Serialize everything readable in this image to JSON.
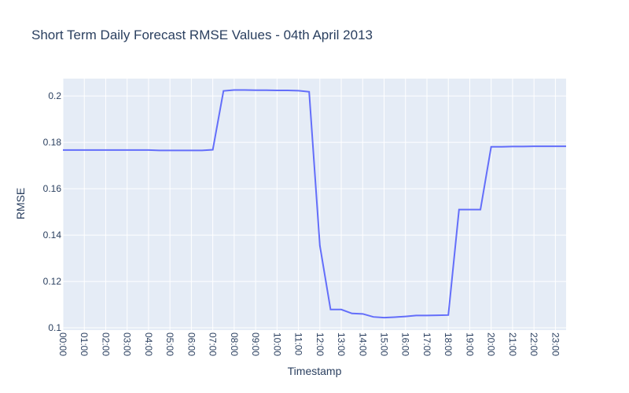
{
  "chart_data": {
    "type": "line",
    "title": "Short Term Daily Forecast RMSE Values - 04th April 2013",
    "xlabel": "Timestamp",
    "ylabel": "RMSE",
    "x_tick_labels": [
      "00:00",
      "01:00",
      "02:00",
      "03:00",
      "04:00",
      "05:00",
      "06:00",
      "07:00",
      "08:00",
      "09:00",
      "10:00",
      "11:00",
      "12:00",
      "13:00",
      "14:00",
      "15:00",
      "16:00",
      "17:00",
      "18:00",
      "19:00",
      "20:00",
      "21:00",
      "22:00",
      "23:00"
    ],
    "y_ticks": [
      0.1,
      0.12,
      0.14,
      0.16,
      0.18,
      0.2
    ],
    "y_tick_labels": [
      "0.1",
      "0.12",
      "0.14",
      "0.16",
      "0.18",
      "0.2"
    ],
    "xlim": [
      "00:00",
      "23:30"
    ],
    "ylim": [
      0.099,
      0.2075
    ],
    "grid": true,
    "line_color": "#636efa",
    "plot_bg_color": "#e5ecf6",
    "series": [
      {
        "x": [
          "00:00",
          "00:30",
          "01:00",
          "01:30",
          "02:00",
          "02:30",
          "03:00",
          "03:30",
          "04:00",
          "04:30",
          "05:00",
          "05:30",
          "06:00",
          "06:30",
          "07:00",
          "07:30",
          "08:00",
          "08:30",
          "09:00",
          "09:30",
          "10:00",
          "10:30",
          "11:00",
          "11:30",
          "12:00",
          "12:30",
          "13:00",
          "13:30",
          "14:00",
          "14:30",
          "15:00",
          "15:30",
          "16:00",
          "16:30",
          "17:00",
          "17:30",
          "18:00",
          "18:30",
          "19:00",
          "19:30",
          "20:00",
          "20:30",
          "21:00",
          "21:30",
          "22:00",
          "22:30",
          "23:00",
          "23:30"
        ],
        "values": [
          0.1767,
          0.1767,
          0.1767,
          0.1767,
          0.1767,
          0.1767,
          0.1767,
          0.1767,
          0.1767,
          0.1765,
          0.1765,
          0.1765,
          0.1765,
          0.1765,
          0.1768,
          0.2022,
          0.2026,
          0.2026,
          0.2025,
          0.2025,
          0.2024,
          0.2024,
          0.2023,
          0.2018,
          0.1355,
          0.1079,
          0.1079,
          0.1062,
          0.106,
          0.1047,
          0.1044,
          0.1046,
          0.1049,
          0.1053,
          0.1053,
          0.1054,
          0.1055,
          0.151,
          0.151,
          0.151,
          0.1781,
          0.1781,
          0.1782,
          0.1782,
          0.1783,
          0.1783,
          0.1783,
          0.1783
        ]
      }
    ]
  }
}
